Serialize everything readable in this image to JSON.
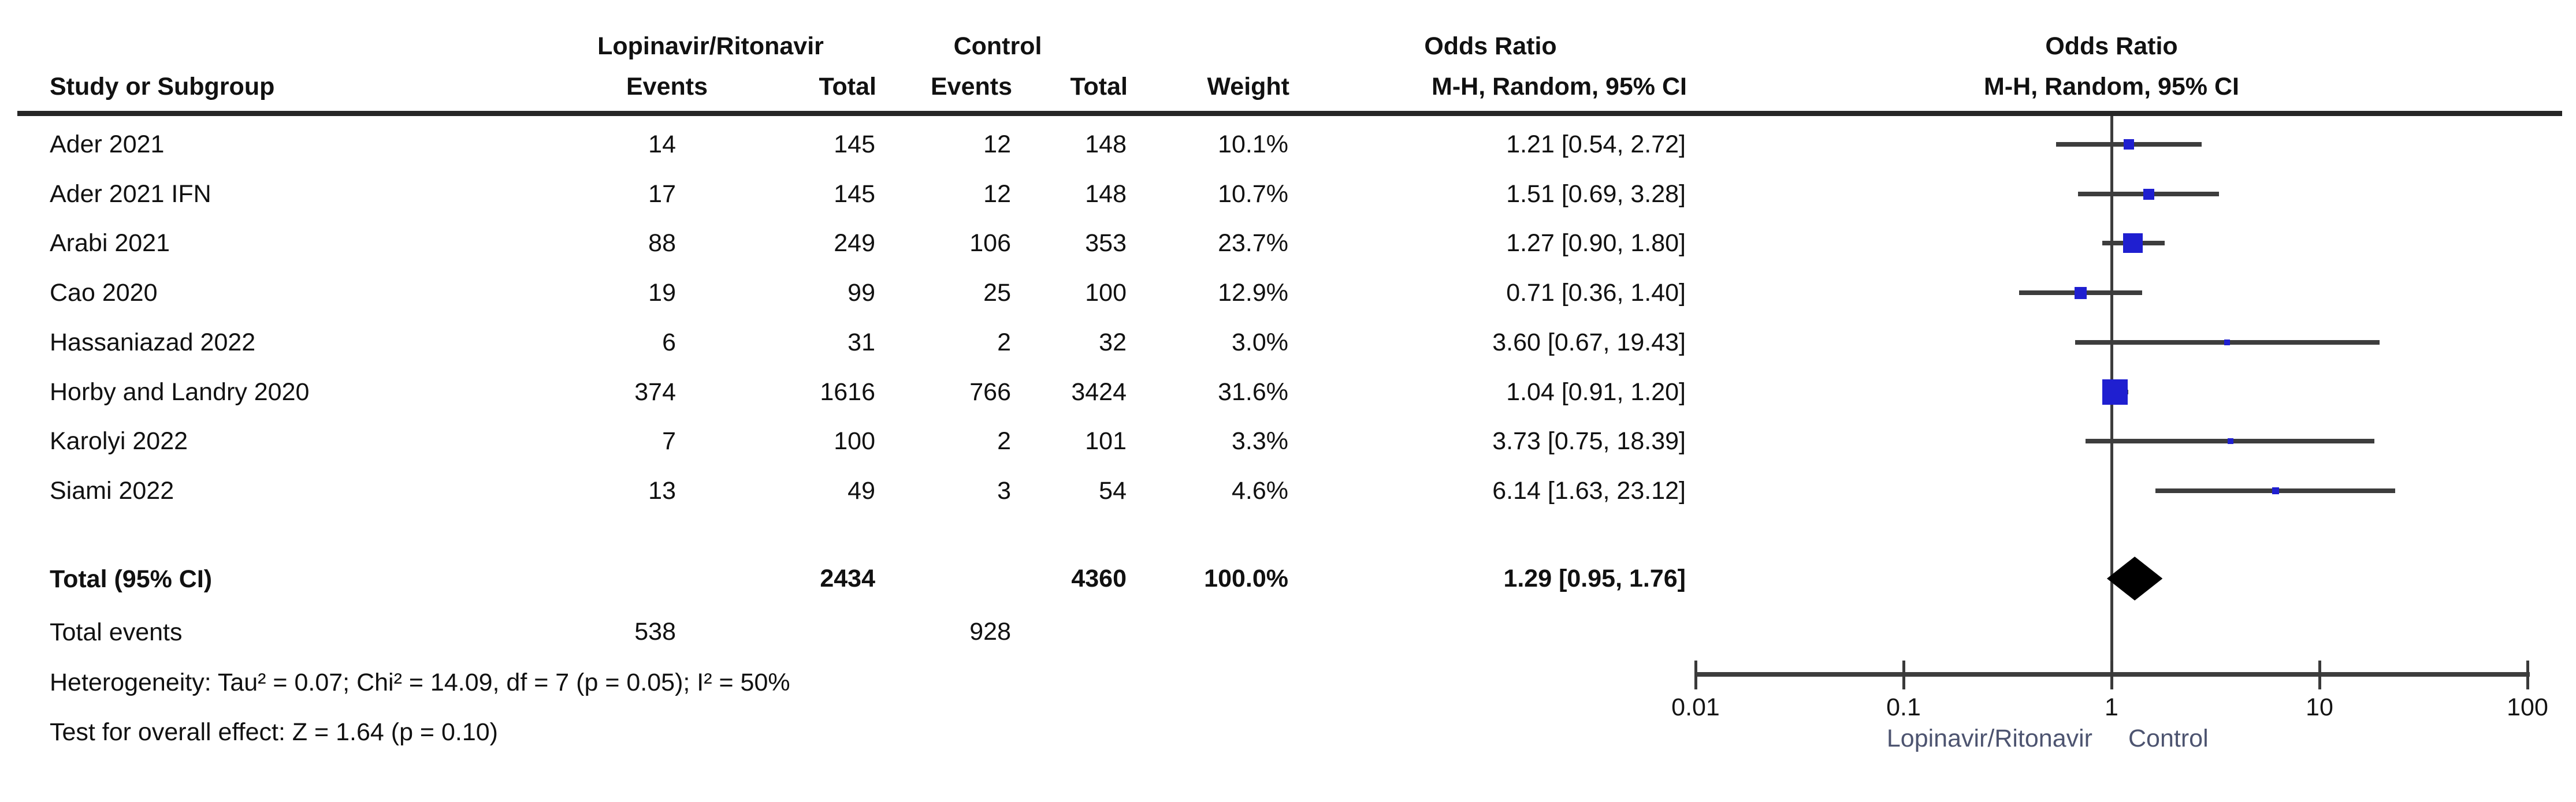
{
  "header": {
    "col_study": "Study or Subgroup",
    "group_treatment": "Lopinavir/Ritonavir",
    "group_control": "Control",
    "col_events": "Events",
    "col_total": "Total",
    "col_weight": "Weight",
    "odds_ratio_table": "Odds Ratio",
    "odds_ratio_plot": "Odds Ratio",
    "method_table": "M-H, Random, 95% CI",
    "method_plot": "M-H, Random, 95% CI"
  },
  "chart_data": {
    "type": "forest",
    "effect_measure": "Odds Ratio",
    "model": "M-H, Random, 95% CI",
    "x_axis": {
      "scale": "log10",
      "ticks": [
        0.01,
        0.1,
        1,
        10,
        100
      ],
      "tick_labels": [
        "0.01",
        "0.1",
        "1",
        "10",
        "100"
      ],
      "left_label": "Lopinavir/Ritonavir",
      "right_label": "Control"
    },
    "studies": [
      {
        "name": "Ader 2021",
        "events1": "14",
        "total1": "145",
        "events2": "12",
        "total2": "148",
        "weight": "10.1%",
        "weight_pct": 10.1,
        "or": 1.21,
        "ci_low": 0.54,
        "ci_high": 2.72,
        "or_text": "1.21 [0.54, 2.72]"
      },
      {
        "name": "Ader 2021 IFN",
        "events1": "17",
        "total1": "145",
        "events2": "12",
        "total2": "148",
        "weight": "10.7%",
        "weight_pct": 10.7,
        "or": 1.51,
        "ci_low": 0.69,
        "ci_high": 3.28,
        "or_text": "1.51 [0.69, 3.28]"
      },
      {
        "name": "Arabi 2021",
        "events1": "88",
        "total1": "249",
        "events2": "106",
        "total2": "353",
        "weight": "23.7%",
        "weight_pct": 23.7,
        "or": 1.27,
        "ci_low": 0.9,
        "ci_high": 1.8,
        "or_text": "1.27 [0.90, 1.80]"
      },
      {
        "name": "Cao 2020",
        "events1": "19",
        "total1": "99",
        "events2": "25",
        "total2": "100",
        "weight": "12.9%",
        "weight_pct": 12.9,
        "or": 0.71,
        "ci_low": 0.36,
        "ci_high": 1.4,
        "or_text": "0.71 [0.36, 1.40]"
      },
      {
        "name": "Hassaniazad 2022",
        "events1": "6",
        "total1": "31",
        "events2": "2",
        "total2": "32",
        "weight": "3.0%",
        "weight_pct": 3.0,
        "or": 3.6,
        "ci_low": 0.67,
        "ci_high": 19.43,
        "or_text": "3.60 [0.67, 19.43]"
      },
      {
        "name": "Horby and Landry 2020",
        "events1": "374",
        "total1": "1616",
        "events2": "766",
        "total2": "3424",
        "weight": "31.6%",
        "weight_pct": 31.6,
        "or": 1.04,
        "ci_low": 0.91,
        "ci_high": 1.2,
        "or_text": "1.04 [0.91, 1.20]"
      },
      {
        "name": "Karolyi 2022",
        "events1": "7",
        "total1": "100",
        "events2": "2",
        "total2": "101",
        "weight": "3.3%",
        "weight_pct": 3.3,
        "or": 3.73,
        "ci_low": 0.75,
        "ci_high": 18.39,
        "or_text": "3.73 [0.75, 18.39]"
      },
      {
        "name": "Siami 2022",
        "events1": "13",
        "total1": "49",
        "events2": "3",
        "total2": "54",
        "weight": "4.6%",
        "weight_pct": 4.6,
        "or": 6.14,
        "ci_low": 1.63,
        "ci_high": 23.12,
        "or_text": "6.14 [1.63, 23.12]"
      }
    ],
    "total": {
      "label": "Total (95% CI)",
      "total1": "2434",
      "total2": "4360",
      "weight": "100.0%",
      "or": 1.29,
      "ci_low": 0.95,
      "ci_high": 1.76,
      "or_text": "1.29 [0.95, 1.76]"
    },
    "total_events": {
      "label": "Total events",
      "events1": "538",
      "events2": "928"
    },
    "heterogeneity": "Heterogeneity: Tau² = 0.07; Chi² = 14.09, df = 7 (p = 0.05); I² = 50%",
    "overall_effect": "Test for overall effect: Z = 1.64 (p = 0.10)"
  },
  "colors": {
    "square_blue": "#1f1fd0",
    "diamond_black": "#000000",
    "line_gray": "#3d3d3d",
    "axis_caption": "#4d5470",
    "text": "#111111"
  }
}
